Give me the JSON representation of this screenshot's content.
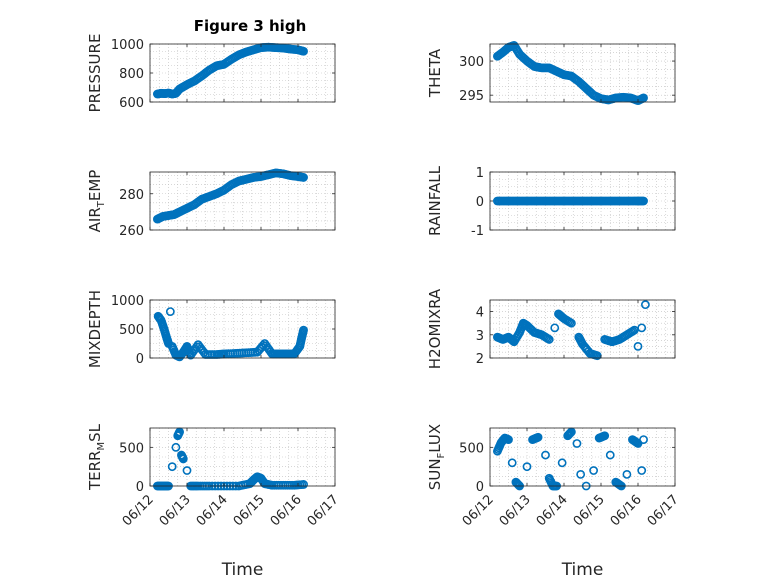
{
  "figure": {
    "title": "Figure 3 high",
    "xlabel": "Time"
  },
  "colors": {
    "marker": "#0072BD",
    "axis": "#262626",
    "grid": "#bfbfbf"
  },
  "chart_data": [
    {
      "type": "scatter",
      "ylabel_main": "PRESSURE",
      "ylabel_sub": "",
      "ylim": [
        600,
        1000
      ],
      "yticks": [
        600,
        800,
        1000
      ],
      "ytick_labels": [
        "600",
        "800",
        "1000"
      ],
      "xlim": [
        0,
        5
      ],
      "xticks": [
        0,
        1,
        2,
        3,
        4,
        5
      ],
      "xtick_labels": [
        "06/12",
        "06/13",
        "06/14",
        "06/15",
        "06/16",
        "06/17"
      ],
      "grid": true,
      "show_xticklabels": false,
      "has_title": true,
      "points": [
        [
          0.2,
          655
        ],
        [
          0.3,
          660
        ],
        [
          0.4,
          658
        ],
        [
          0.5,
          662
        ],
        [
          0.6,
          655
        ],
        [
          0.7,
          660
        ],
        [
          0.8,
          690
        ],
        [
          1.0,
          720
        ],
        [
          1.2,
          745
        ],
        [
          1.4,
          780
        ],
        [
          1.6,
          820
        ],
        [
          1.8,
          850
        ],
        [
          2.0,
          860
        ],
        [
          2.2,
          895
        ],
        [
          2.4,
          925
        ],
        [
          2.6,
          945
        ],
        [
          2.8,
          960
        ],
        [
          3.0,
          975
        ],
        [
          3.2,
          978
        ],
        [
          3.4,
          975
        ],
        [
          3.6,
          972
        ],
        [
          3.8,
          965
        ],
        [
          4.0,
          960
        ],
        [
          4.15,
          950
        ]
      ]
    },
    {
      "type": "scatter",
      "ylabel_main": "THETA",
      "ylabel_sub": "",
      "ylim": [
        294,
        302.5
      ],
      "yticks": [
        295,
        300
      ],
      "ytick_labels": [
        "295",
        "300"
      ],
      "xlim": [
        0,
        5
      ],
      "xticks": [
        0,
        1,
        2,
        3,
        4,
        5
      ],
      "xtick_labels": [
        "06/12",
        "06/13",
        "06/14",
        "06/15",
        "06/16",
        "06/17"
      ],
      "grid": true,
      "show_xticklabels": false,
      "has_title": false,
      "points": [
        [
          0.2,
          300.7
        ],
        [
          0.35,
          301.3
        ],
        [
          0.5,
          302.0
        ],
        [
          0.65,
          302.3
        ],
        [
          0.8,
          301.0
        ],
        [
          1.0,
          300.0
        ],
        [
          1.2,
          299.2
        ],
        [
          1.4,
          299.0
        ],
        [
          1.6,
          299.0
        ],
        [
          1.8,
          298.5
        ],
        [
          2.0,
          298.0
        ],
        [
          2.2,
          297.8
        ],
        [
          2.4,
          297.0
        ],
        [
          2.6,
          296.0
        ],
        [
          2.8,
          295.0
        ],
        [
          3.0,
          294.5
        ],
        [
          3.2,
          294.3
        ],
        [
          3.4,
          294.6
        ],
        [
          3.6,
          294.7
        ],
        [
          3.8,
          294.6
        ],
        [
          4.0,
          294.2
        ],
        [
          4.15,
          294.6
        ]
      ]
    },
    {
      "type": "scatter",
      "ylabel_main": "AIR",
      "ylabel_sub": "T",
      "ylabel_tail": "EMP",
      "ylim": [
        260,
        292
      ],
      "yticks": [
        260,
        280
      ],
      "ytick_labels": [
        "260",
        "280"
      ],
      "xlim": [
        0,
        5
      ],
      "xticks": [
        0,
        1,
        2,
        3,
        4,
        5
      ],
      "xtick_labels": [
        "06/12",
        "06/13",
        "06/14",
        "06/15",
        "06/16",
        "06/17"
      ],
      "grid": true,
      "show_xticklabels": false,
      "has_title": false,
      "points": [
        [
          0.2,
          266
        ],
        [
          0.35,
          267.5
        ],
        [
          0.5,
          268
        ],
        [
          0.65,
          268.5
        ],
        [
          0.8,
          270
        ],
        [
          1.0,
          272
        ],
        [
          1.2,
          274
        ],
        [
          1.4,
          277
        ],
        [
          1.6,
          278.5
        ],
        [
          1.8,
          280
        ],
        [
          2.0,
          282
        ],
        [
          2.2,
          285
        ],
        [
          2.4,
          287
        ],
        [
          2.6,
          288
        ],
        [
          2.8,
          289
        ],
        [
          3.0,
          289.5
        ],
        [
          3.2,
          290.5
        ],
        [
          3.4,
          291.5
        ],
        [
          3.6,
          291
        ],
        [
          3.8,
          290
        ],
        [
          4.0,
          289.5
        ],
        [
          4.15,
          289
        ]
      ]
    },
    {
      "type": "scatter",
      "ylabel_main": "RAINFALL",
      "ylabel_sub": "",
      "ylim": [
        -1,
        1
      ],
      "yticks": [
        -1,
        0,
        1
      ],
      "ytick_labels": [
        "-1",
        "0",
        "1"
      ],
      "xlim": [
        0,
        5
      ],
      "xticks": [
        0,
        1,
        2,
        3,
        4,
        5
      ],
      "xtick_labels": [
        "06/12",
        "06/13",
        "06/14",
        "06/15",
        "06/16",
        "06/17"
      ],
      "grid": true,
      "show_xticklabels": false,
      "has_title": false,
      "points": [
        [
          0.2,
          0
        ],
        [
          0.4,
          0
        ],
        [
          0.6,
          0
        ],
        [
          0.8,
          0
        ],
        [
          1.0,
          0
        ],
        [
          1.2,
          0
        ],
        [
          1.4,
          0
        ],
        [
          1.6,
          0
        ],
        [
          1.8,
          0
        ],
        [
          2.0,
          0
        ],
        [
          2.2,
          0
        ],
        [
          2.4,
          0
        ],
        [
          2.6,
          0
        ],
        [
          2.8,
          0
        ],
        [
          3.0,
          0
        ],
        [
          3.2,
          0
        ],
        [
          3.4,
          0
        ],
        [
          3.6,
          0
        ],
        [
          3.8,
          0
        ],
        [
          4.0,
          0
        ],
        [
          4.15,
          0
        ]
      ]
    },
    {
      "type": "scatter",
      "ylabel_main": "MIXDEPTH",
      "ylabel_sub": "",
      "ylim": [
        0,
        1000
      ],
      "yticks": [
        0,
        500,
        1000
      ],
      "ytick_labels": [
        "0",
        "500",
        "1000"
      ],
      "xlim": [
        0,
        5
      ],
      "xticks": [
        0,
        1,
        2,
        3,
        4,
        5
      ],
      "xtick_labels": [
        "06/12",
        "06/13",
        "06/14",
        "06/15",
        "06/16",
        "06/17"
      ],
      "grid": true,
      "show_xticklabels": false,
      "has_title": false,
      "points": [
        [
          0.22,
          720
        ],
        [
          0.3,
          650
        ],
        [
          0.38,
          500
        ],
        [
          0.45,
          350
        ],
        [
          0.5,
          250
        ],
        [
          0.55,
          800
        ],
        [
          0.6,
          200
        ],
        [
          0.7,
          50
        ],
        [
          0.8,
          20
        ],
        [
          0.9,
          100
        ],
        [
          1.0,
          200
        ],
        [
          1.1,
          50
        ],
        [
          1.3,
          230
        ],
        [
          1.5,
          60
        ],
        [
          1.8,
          60
        ],
        [
          2.0,
          70
        ],
        [
          2.3,
          80
        ],
        [
          2.6,
          90
        ],
        [
          2.9,
          100
        ],
        [
          3.1,
          250
        ],
        [
          3.3,
          70
        ],
        [
          3.5,
          70
        ],
        [
          3.7,
          70
        ],
        [
          3.9,
          70
        ],
        [
          4.05,
          200
        ],
        [
          4.1,
          350
        ],
        [
          4.15,
          480
        ]
      ]
    },
    {
      "type": "scatter",
      "ylabel_main": "H2OMIXRA",
      "ylabel_sub": "",
      "ylim": [
        2,
        4.5
      ],
      "yticks": [
        2,
        3,
        4
      ],
      "ytick_labels": [
        "2",
        "3",
        "4"
      ],
      "xlim": [
        0,
        5
      ],
      "xticks": [
        0,
        1,
        2,
        3,
        4,
        5
      ],
      "xtick_labels": [
        "06/12",
        "06/13",
        "06/14",
        "06/15",
        "06/16",
        "06/17"
      ],
      "grid": true,
      "show_xticklabels": false,
      "has_title": false,
      "points": [
        [
          0.2,
          2.9
        ],
        [
          0.35,
          2.8
        ],
        [
          0.5,
          2.9
        ],
        [
          0.65,
          2.7
        ],
        [
          0.8,
          3.1
        ],
        [
          0.9,
          3.5
        ],
        [
          1.0,
          3.4
        ],
        [
          1.2,
          3.1
        ],
        [
          1.4,
          3.0
        ],
        [
          1.6,
          2.8
        ],
        [
          1.75,
          3.3
        ],
        [
          1.85,
          3.9
        ],
        [
          2.0,
          3.7
        ],
        [
          2.2,
          3.5
        ],
        [
          2.4,
          2.9
        ],
        [
          2.5,
          2.6
        ],
        [
          2.7,
          2.2
        ],
        [
          2.9,
          2.1
        ],
        [
          3.1,
          2.8
        ],
        [
          3.3,
          2.7
        ],
        [
          3.5,
          2.8
        ],
        [
          3.7,
          3.0
        ],
        [
          3.9,
          3.2
        ],
        [
          4.0,
          2.5
        ],
        [
          4.1,
          3.3
        ],
        [
          4.2,
          4.3
        ]
      ]
    },
    {
      "type": "scatter",
      "ylabel_main": "TERR",
      "ylabel_sub": "M",
      "ylabel_tail": "SL",
      "ylim": [
        0,
        750
      ],
      "yticks": [
        0,
        500
      ],
      "ytick_labels": [
        "0",
        "500"
      ],
      "xlim": [
        0,
        5
      ],
      "xticks": [
        0,
        1,
        2,
        3,
        4,
        5
      ],
      "xtick_labels": [
        "06/12",
        "06/13",
        "06/14",
        "06/15",
        "06/16",
        "06/17"
      ],
      "grid": true,
      "show_xticklabels": true,
      "has_title": false,
      "points": [
        [
          0.2,
          0
        ],
        [
          0.3,
          0
        ],
        [
          0.4,
          0
        ],
        [
          0.5,
          0
        ],
        [
          0.6,
          250
        ],
        [
          0.7,
          500
        ],
        [
          0.75,
          650
        ],
        [
          0.8,
          700
        ],
        [
          0.85,
          400
        ],
        [
          0.9,
          350
        ],
        [
          1.0,
          200
        ],
        [
          1.1,
          0
        ],
        [
          1.3,
          0
        ],
        [
          1.6,
          0
        ],
        [
          2.0,
          0
        ],
        [
          2.4,
          0
        ],
        [
          2.7,
          30
        ],
        [
          2.8,
          80
        ],
        [
          2.9,
          120
        ],
        [
          3.0,
          100
        ],
        [
          3.1,
          30
        ],
        [
          3.3,
          10
        ],
        [
          3.6,
          10
        ],
        [
          3.9,
          10
        ],
        [
          4.15,
          20
        ]
      ]
    },
    {
      "type": "scatter",
      "ylabel_main": "SUN",
      "ylabel_sub": "F",
      "ylabel_tail": "LUX",
      "ylim": [
        0,
        750
      ],
      "yticks": [
        0,
        500
      ],
      "ytick_labels": [
        "0",
        "500"
      ],
      "xlim": [
        0,
        5
      ],
      "xticks": [
        0,
        1,
        2,
        3,
        4,
        5
      ],
      "xtick_labels": [
        "06/12",
        "06/13",
        "06/14",
        "06/15",
        "06/16",
        "06/17"
      ],
      "grid": true,
      "show_xticklabels": true,
      "has_title": false,
      "points": [
        [
          0.2,
          450
        ],
        [
          0.3,
          560
        ],
        [
          0.4,
          620
        ],
        [
          0.5,
          600
        ],
        [
          0.6,
          300
        ],
        [
          0.7,
          50
        ],
        [
          0.8,
          0
        ],
        [
          1.0,
          250
        ],
        [
          1.15,
          600
        ],
        [
          1.3,
          630
        ],
        [
          1.5,
          400
        ],
        [
          1.6,
          100
        ],
        [
          1.7,
          0
        ],
        [
          1.8,
          0
        ],
        [
          1.95,
          300
        ],
        [
          2.1,
          650
        ],
        [
          2.2,
          700
        ],
        [
          2.35,
          550
        ],
        [
          2.45,
          150
        ],
        [
          2.6,
          0
        ],
        [
          2.8,
          200
        ],
        [
          2.95,
          620
        ],
        [
          3.1,
          650
        ],
        [
          3.25,
          400
        ],
        [
          3.4,
          50
        ],
        [
          3.55,
          0
        ],
        [
          3.7,
          150
        ],
        [
          3.85,
          600
        ],
        [
          4.0,
          550
        ],
        [
          4.1,
          200
        ],
        [
          4.15,
          600
        ]
      ]
    }
  ]
}
